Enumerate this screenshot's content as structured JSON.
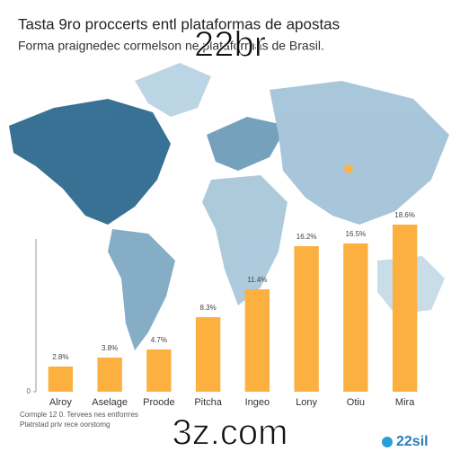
{
  "chart_data": {
    "type": "bar",
    "title": "Tasta 9ro proccerts entl plataformas de apostas",
    "subtitle": "Forma praignedec cormelson ne plataformas de Brasil.",
    "watermark_top": "22br",
    "watermark_bottom": "3z.com",
    "categories": [
      "Alroy",
      "Aselage",
      "Proode",
      "Pitcha",
      "Ingeo",
      "Lony",
      "Otiu",
      "Mira"
    ],
    "values": [
      2.8,
      3.8,
      4.7,
      8.3,
      11.4,
      16.2,
      16.5,
      18.6
    ],
    "value_labels": [
      "2.8%",
      "3.8%",
      "4.7%",
      "8.3%",
      "11.4%",
      "16.2%",
      "16.5%",
      "18.6%"
    ],
    "color": "#fbb040",
    "ylim": [
      0,
      20
    ],
    "yticks": [
      0
    ],
    "footer": [
      "Cormple 12 0. Tervees nes entforrres",
      "Ptatrstad priv rece oorstomg"
    ],
    "logo": "22sil"
  }
}
